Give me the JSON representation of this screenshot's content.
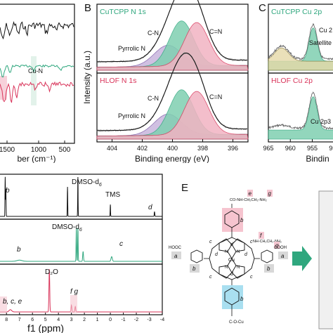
{
  "colors": {
    "black": "#111111",
    "green": "#2fa77e",
    "red": "#d9345a",
    "pink_fill": "#f2b3c2",
    "green_fill": "#7fd0b1",
    "gray": "#888888"
  },
  "panel_a": {
    "xlabel": "ber (cm⁻¹)",
    "ticks": [
      "1500",
      "1000",
      "500"
    ],
    "annotation": "Cu-N"
  },
  "panel_b": {
    "letter": "B",
    "ylabel": "Intensity (a.u.)",
    "xlabel": "Binding energy (eV)",
    "top": {
      "title": "CuTCPP N 1s",
      "peaks": [
        "Pyrrolic N",
        "C-N",
        "C=N"
      ]
    },
    "bottom": {
      "title": "HLOF N 1s",
      "peaks": [
        "Pyrrolic N",
        "C-N",
        "C=N"
      ]
    },
    "ticks": [
      "404",
      "402",
      "400",
      "398",
      "396"
    ]
  },
  "panel_c": {
    "letter": "C",
    "xlabel": "Bindin",
    "top": {
      "title": "CuTCPP Cu 2p",
      "labels": [
        "Cu 2",
        "Satellite"
      ]
    },
    "bottom": {
      "title": "HLOF Cu 2p",
      "labels": [
        "Cu 2p3"
      ]
    },
    "ticks": [
      "965",
      "960",
      "955",
      "950"
    ]
  },
  "panel_d": {
    "xlabel": "f1 (ppm)",
    "ticks": [
      "8",
      "7",
      "6",
      "5",
      "4",
      "3",
      "2",
      "1",
      "0",
      "-1",
      "-2",
      "-3",
      "-4"
    ],
    "top_labels": {
      "b": "b",
      "dmso": "DMSO-d",
      "dmso_sub": "6",
      "tms": "TMS",
      "d": "d"
    },
    "mid_labels": {
      "dmso": "DMSO-d",
      "dmso_sub": "6",
      "b": "b",
      "c": "c"
    },
    "bot_labels": {
      "d2o": "D₂O",
      "bce": "b, c, e",
      "fg": "f g"
    }
  },
  "panel_e": {
    "letter": "E",
    "labels": {
      "e": "e",
      "b": "b",
      "a": "a",
      "c": "c",
      "d": "d",
      "f": "f",
      "g": "g",
      "cu": "Cu",
      "n": "N",
      "cooh_left": "HOOC",
      "cooh_right": "COOH",
      "top_group": "CO-NH-CH₂CH₂-NH₂",
      "right_group": "NH-CH₂CH₂-NH₂",
      "bottom_group": "C-O-Cu"
    }
  },
  "chart_data": [
    {
      "type": "line",
      "panel": "A",
      "xlabel": "ber (cm⁻¹)",
      "x_ticks": [
        1500,
        1000,
        500
      ],
      "series": [
        {
          "values": []
        },
        {
          "values": []
        },
        {
          "values": []
        }
      ]
    },
    {
      "type": "line",
      "panel": "B",
      "xlabel": "Binding energy (eV)",
      "ylabel": "Intensity (a.u.)",
      "xlim": [
        405,
        395
      ],
      "x_ticks": [
        404,
        402,
        400,
        398,
        396
      ],
      "subplots": [
        {
          "title": "CuTCPP N 1s",
          "peaks": [
            {
              "name": "Pyrrolic N",
              "center": 400.3
            },
            {
              "name": "C-N",
              "center": 399.4
            },
            {
              "name": "C=N",
              "center": 398.4
            }
          ]
        },
        {
          "title": "HLOF N 1s",
          "peaks": [
            {
              "name": "Pyrrolic N",
              "center": 400.3
            },
            {
              "name": "C-N",
              "center": 399.4
            },
            {
              "name": "C=N",
              "center": 398.4
            }
          ]
        }
      ]
    },
    {
      "type": "line",
      "panel": "C",
      "xlim": [
        965,
        949
      ],
      "x_ticks": [
        965,
        960,
        955,
        950
      ],
      "subplots": [
        {
          "title": "CuTCPP Cu 2p",
          "peaks": [
            {
              "name": "Cu 2",
              "center": 954.8
            },
            {
              "name": "Satellite",
              "center": 962
            }
          ]
        },
        {
          "title": "HLOF Cu 2p",
          "peaks": [
            {
              "name": "Cu 2p3",
              "center": 954.8
            }
          ]
        }
      ]
    },
    {
      "type": "line",
      "panel": "D",
      "xlabel": "f1 (ppm)",
      "xlim": [
        8.5,
        -4
      ],
      "x_ticks": [
        8,
        7,
        6,
        5,
        4,
        3,
        2,
        1,
        0,
        -1,
        -2,
        -3,
        -4
      ],
      "series": [
        {
          "peaks": [
            {
              "ppm": 8.1,
              "label": "b"
            },
            {
              "ppm": 3.3
            },
            {
              "ppm": 2.5,
              "label": "DMSO-d6"
            },
            {
              "ppm": 0.0,
              "label": "TMS"
            },
            {
              "ppm": -3.4,
              "label": "d"
            }
          ]
        },
        {
          "peaks": [
            {
              "ppm": 7.0,
              "label": "b"
            },
            {
              "ppm": 2.55,
              "label": "DMSO-d6"
            },
            {
              "ppm": 2.1
            },
            {
              "ppm": -0.1,
              "label": "c"
            }
          ]
        },
        {
          "peaks": [
            {
              "ppm": 7.7,
              "label": "b, c, e"
            },
            {
              "ppm": 4.7,
              "label": "D2O"
            },
            {
              "ppm": 3.0,
              "label": "f"
            },
            {
              "ppm": 2.7,
              "label": "g"
            }
          ]
        }
      ]
    }
  ]
}
